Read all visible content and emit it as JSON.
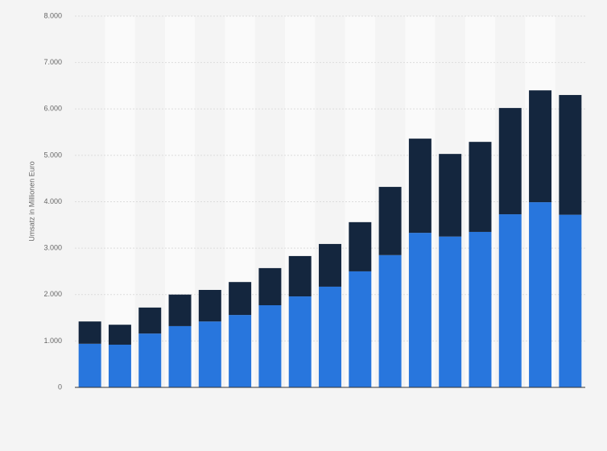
{
  "chart_data": {
    "type": "stacked-bar",
    "y_label": "Umsatz in Millionen Euro",
    "categories": [
      null,
      null,
      null,
      null,
      null,
      null,
      null,
      null,
      null,
      null,
      null,
      null,
      null,
      null,
      null,
      null,
      null
    ],
    "series": [
      {
        "color": "#2876dd",
        "values": [
          940,
          920,
          1160,
          1320,
          1420,
          1560,
          1770,
          1960,
          2170,
          2500,
          2850,
          3330,
          3250,
          3350,
          3730,
          3990,
          3720
        ]
      },
      {
        "color": "#14263e",
        "values": [
          480,
          430,
          560,
          680,
          680,
          710,
          800,
          870,
          920,
          1060,
          1470,
          2030,
          1780,
          1940,
          2290,
          2410,
          2580
        ]
      }
    ],
    "ylim": [
      0,
      8000
    ],
    "yticks": [
      0,
      {
        "value": 1000,
        "label": "1.000"
      },
      {
        "value": 2000,
        "label": "2.000"
      },
      {
        "value": 3000,
        "label": "3.000"
      },
      {
        "value": 4000,
        "label": "4.000"
      },
      {
        "value": 5000,
        "label": "5.000"
      },
      {
        "value": 6000,
        "label": "6.000"
      },
      {
        "value": 7000,
        "label": "7.000"
      },
      {
        "value": 8000,
        "label": "8.000"
      }
    ],
    "grid": true
  }
}
